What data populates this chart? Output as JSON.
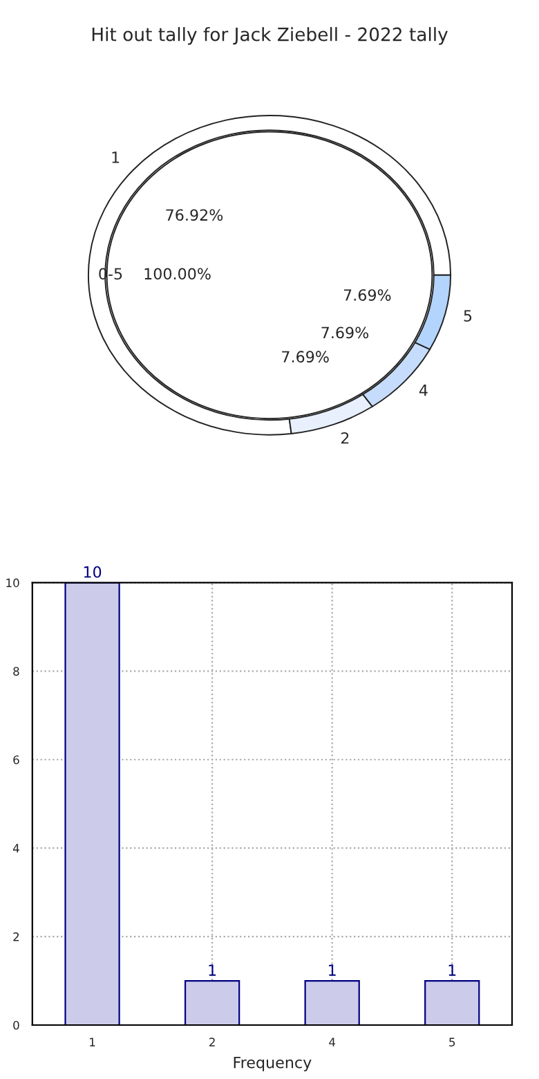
{
  "chart_data": [
    {
      "type": "pie",
      "title": "Hit out tally for Jack Ziebell - 2022 tally",
      "categories": [
        "1",
        "2",
        "4",
        "5"
      ],
      "series": [
        {
          "values": [
            76.92,
            7.69,
            7.69,
            7.69
          ],
          "colors": [
            "#ffffff",
            "#e8f0fe",
            "#c6dcfc",
            "#b3d4fc"
          ],
          "value_labels": [
            "76.92%",
            "7.69%",
            "7.69%",
            "7.69%"
          ]
        },
        {
          "name": "0-5",
          "values": [
            100,
            null,
            null,
            null
          ],
          "colors": [
            "#ffffff",
            null,
            null,
            null
          ],
          "value_labels": [
            "100.00%",
            null,
            null,
            null
          ]
        }
      ]
    },
    {
      "type": "bar",
      "categories": [
        "1",
        "2",
        "4",
        "5"
      ],
      "values": [
        10,
        1,
        1,
        1
      ],
      "color": "#ccccea",
      "xlabel": "Frequency",
      "ylim": [
        0,
        10
      ],
      "yticks": [
        0,
        2,
        4,
        6,
        8,
        10
      ],
      "grid": true,
      "data_labels": true
    }
  ]
}
